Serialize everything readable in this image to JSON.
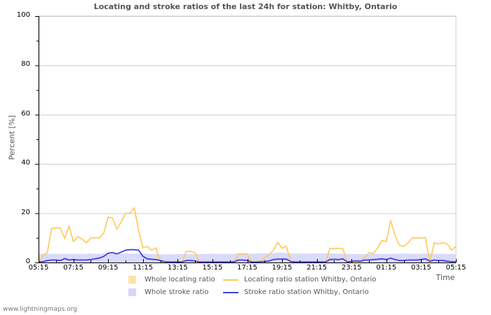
{
  "chart_data": {
    "type": "line",
    "title": "Locating and stroke ratios of the last 24h for station: Whitby, Ontario",
    "xlabel": "Time",
    "ylabel": "Percent   [%]",
    "ylim": [
      0,
      100
    ],
    "yticks": [
      "0",
      "20",
      "40",
      "60",
      "80",
      "100"
    ],
    "xticks": [
      "05:15",
      "07:15",
      "09:15",
      "11:15",
      "13:15",
      "15:15",
      "17:15",
      "19:15",
      "21:15",
      "23:15",
      "01:15",
      "03:15",
      "05:15"
    ],
    "grid": true,
    "legend_position": "bottom",
    "colors": {
      "whole_locating": "#fde3a7",
      "locating_station": "#ffc955",
      "whole_stroke": "#d6d6fa",
      "stroke_station": "#3f3fe6"
    },
    "x_hours": [
      0,
      0.25,
      0.5,
      0.75,
      1,
      1.25,
      1.5,
      1.75,
      2,
      2.25,
      2.5,
      2.75,
      3,
      3.25,
      3.5,
      3.75,
      4,
      4.25,
      4.5,
      4.75,
      5,
      5.25,
      5.5,
      5.75,
      6,
      6.25,
      6.5,
      6.75,
      7,
      7.25,
      7.5,
      7.75,
      8,
      8.25,
      8.5,
      8.75,
      9,
      9.25,
      9.5,
      9.75,
      10,
      10.25,
      10.5,
      10.75,
      11,
      11.25,
      11.5,
      11.75,
      12,
      12.25,
      12.5,
      12.75,
      13,
      13.25,
      13.5,
      13.75,
      14,
      14.25,
      14.5,
      14.75,
      15,
      15.25,
      15.5,
      15.75,
      16,
      16.25,
      16.5,
      16.75,
      17,
      17.25,
      17.5,
      17.75,
      18,
      18.25,
      18.5,
      18.75,
      19,
      19.25,
      19.5,
      19.75,
      20,
      20.25,
      20.5,
      20.75,
      21,
      21.25,
      21.5,
      21.75,
      22,
      22.25,
      22.5,
      22.75,
      23,
      23.25,
      23.5,
      23.75,
      24
    ],
    "series": [
      {
        "name": "Whole locating ratio",
        "type": "area",
        "values": [
          0,
          0,
          0,
          0,
          0,
          0,
          0,
          0,
          0,
          0,
          0,
          0,
          0,
          0,
          0,
          0,
          0,
          0,
          0,
          0,
          0,
          0,
          0,
          0,
          0,
          0,
          0,
          0,
          0,
          0,
          0,
          0,
          0,
          0,
          0,
          0,
          0,
          0,
          0,
          0,
          0,
          0,
          0,
          0,
          0,
          0,
          0,
          0,
          0,
          0,
          0,
          0,
          0,
          0,
          0,
          0,
          0,
          0,
          0,
          0,
          0,
          0,
          0,
          0,
          0,
          0,
          0,
          0,
          0,
          0,
          0,
          0,
          0,
          0,
          0,
          0,
          0,
          0,
          0,
          0,
          0,
          0,
          0,
          0,
          0,
          0,
          0,
          0,
          0,
          0,
          0,
          0,
          0,
          0,
          0,
          0,
          0
        ]
      },
      {
        "name": "Locating ratio station Whitby, Ontario",
        "type": "line",
        "values": [
          0,
          3,
          4,
          13.8,
          14,
          14,
          9.8,
          14.8,
          8.5,
          10.5,
          9.5,
          8,
          10,
          10,
          10,
          12,
          18.5,
          18,
          13.5,
          16.5,
          20,
          20,
          22.2,
          13,
          6,
          6.5,
          5,
          6,
          0,
          0,
          0,
          0,
          0,
          0,
          4.5,
          4.5,
          4,
          0,
          0,
          0,
          0,
          0,
          0,
          0,
          0,
          0,
          3.5,
          3.5,
          3.5,
          0,
          0,
          0,
          2,
          3,
          5,
          8.2,
          5.8,
          6.6,
          0,
          0,
          0,
          0,
          0,
          0,
          0,
          0,
          0,
          5.8,
          5.5,
          5.8,
          5.5,
          0,
          0,
          1,
          0.5,
          2,
          4,
          3.5,
          6,
          9,
          8.5,
          17,
          11,
          7,
          6.5,
          8,
          10,
          10,
          10,
          10,
          0,
          8,
          7.5,
          8,
          7.5,
          5,
          6.5,
          4,
          4
        ]
      },
      {
        "name": "Whole stroke ratio",
        "type": "area",
        "values": [
          3.5,
          3.5,
          3.5,
          3.5,
          3.5,
          3.5,
          3.5,
          3.5,
          3.5,
          3.5,
          3.5,
          3.5,
          3.7,
          3.5,
          3.5,
          3.6,
          3.6,
          3.5,
          3.5,
          3.6,
          3.7,
          3.6,
          3.6,
          3.6,
          3.6,
          3.5,
          3.5,
          3.4,
          3.3,
          3.3,
          3.4,
          3.3,
          3.4,
          3.5,
          3.5,
          3.4,
          3.4,
          3.4,
          3.5,
          3.5,
          3.6,
          3.5,
          3.5,
          3.5,
          3.5,
          3.6,
          3.6,
          3.6,
          3.6,
          3.6,
          3.6,
          3.7,
          3.8,
          3.7,
          3.8,
          4,
          4,
          3.8,
          3.7,
          3.6,
          3.6,
          3.6,
          3.6,
          3.6,
          3.7,
          3.7,
          3.7,
          3.7,
          3.6,
          3.6,
          3.6,
          3.5,
          3.5,
          3.4,
          3.4,
          3.4,
          3.4,
          3.4,
          3.5,
          3.5,
          3.5,
          3.5,
          3.5,
          3.6,
          3.6,
          3.6,
          3.5,
          3.5,
          3.6,
          3.6,
          3.6,
          3.5,
          3.5,
          3.5,
          3.5,
          3.5,
          3.5
        ]
      },
      {
        "name": "Stroke ratio station Whitby, Ontario",
        "type": "line",
        "values": [
          0.3,
          0.3,
          0.8,
          1,
          1,
          0.8,
          1.6,
          1,
          1.2,
          1,
          1,
          1,
          1.2,
          1.5,
          1.8,
          2.5,
          3.8,
          4,
          3.5,
          4.2,
          5,
          5.2,
          5.2,
          5,
          2.5,
          1.5,
          1.3,
          1.2,
          0.8,
          0.3,
          0.2,
          0.2,
          0.2,
          0.2,
          0.8,
          0.8,
          0.6,
          0.2,
          0.2,
          0.2,
          0.2,
          0.2,
          0.2,
          0.2,
          0.2,
          0.3,
          1,
          1,
          0.8,
          0.2,
          0.2,
          0.3,
          0.4,
          0.6,
          1.2,
          1.4,
          1.4,
          1.4,
          0.4,
          0.2,
          0.2,
          0.2,
          0.2,
          0.2,
          0.2,
          0.2,
          0.2,
          1.2,
          1.3,
          1.2,
          1.5,
          0.2,
          0.5,
          0.6,
          0.5,
          1,
          1,
          1.2,
          1.3,
          1.5,
          1.2,
          1.8,
          1.2,
          0.8,
          0.8,
          1,
          1,
          1,
          1.2,
          1.5,
          0.5,
          1,
          0.8,
          0.8,
          0.5,
          0.3,
          0.3,
          0.3,
          0.3
        ]
      }
    ]
  },
  "legend": {
    "items": [
      {
        "label": "Whole locating ratio"
      },
      {
        "label": "Locating ratio station Whitby, Ontario"
      },
      {
        "label": "Whole stroke ratio"
      },
      {
        "label": "Stroke ratio station Whitby, Ontario"
      }
    ]
  },
  "footer": {
    "watermark": "www.lightningmaps.org"
  }
}
